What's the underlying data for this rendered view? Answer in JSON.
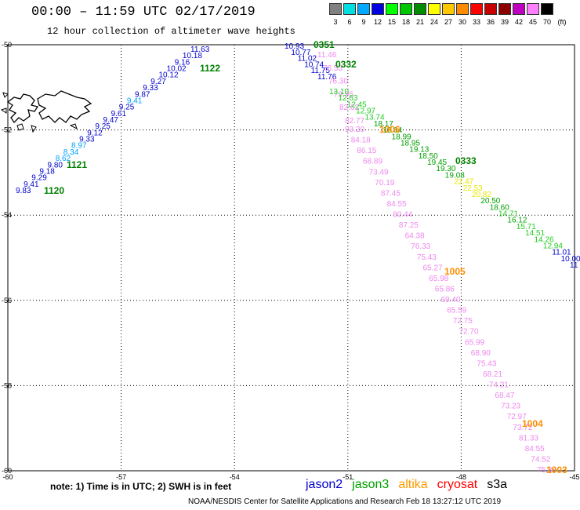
{
  "header": {
    "title": "00:00 – 11:59 UTC 02/17/2019",
    "subtitle": "12 hour collection of altimeter wave heights"
  },
  "legend": {
    "unit": "(ft)",
    "bins": [
      {
        "label": "3",
        "color": "#808080"
      },
      {
        "label": "6",
        "color": "#00e0e0"
      },
      {
        "label": "9",
        "color": "#00a8ff"
      },
      {
        "label": "12",
        "color": "#0000e0"
      },
      {
        "label": "15",
        "color": "#00ff00"
      },
      {
        "label": "18",
        "color": "#00c800"
      },
      {
        "label": "21",
        "color": "#008c00"
      },
      {
        "label": "24",
        "color": "#ffff00"
      },
      {
        "label": "27",
        "color": "#ffc800"
      },
      {
        "label": "30",
        "color": "#ff8c00"
      },
      {
        "label": "33",
        "color": "#ff0000"
      },
      {
        "label": "36",
        "color": "#c80000"
      },
      {
        "label": "39",
        "color": "#8c0000"
      },
      {
        "label": "42",
        "color": "#c000c0"
      },
      {
        "label": "45",
        "color": "#ff80ff"
      },
      {
        "label": "70",
        "color": "#000000"
      }
    ]
  },
  "axes": {
    "lon_ticks": [
      "-60",
      "-57",
      "-54",
      "-51",
      "-48",
      "-45"
    ],
    "lat_ticks": [
      "-50",
      "-52",
      "-54",
      "-56",
      "-58",
      "-60"
    ]
  },
  "colors": {
    "jason2": "#0000cc",
    "jason3": "#00a000",
    "altika": "#ff9900",
    "cryosat": "#ff0000",
    "s3a": "#000000",
    "pass_green": "#008000",
    "pass_orange": "#ff8c00",
    "cyan": "#00a0ff",
    "lgreen": "#22cc22",
    "yellow": "#e8e800",
    "pink": "#ee88ee"
  },
  "pass_labels": [
    {
      "text": "1122",
      "color": "pass_green"
    },
    {
      "text": "1121",
      "color": "pass_green"
    },
    {
      "text": "1120",
      "color": "pass_green"
    },
    {
      "text": "0332",
      "color": "pass_green"
    },
    {
      "text": "0333",
      "color": "pass_green"
    },
    {
      "text": "1006",
      "color": "pass_orange"
    },
    {
      "text": "1005",
      "color": "pass_orange"
    },
    {
      "text": "1004",
      "color": "pass_orange"
    },
    {
      "text": "1003",
      "color": "pass_orange"
    },
    {
      "text": "0351",
      "color": "pass_green"
    }
  ],
  "track_jason2_west": [
    {
      "text": "11.63",
      "color": "jason2"
    },
    {
      "text": "10.18",
      "color": "jason2"
    },
    {
      "text": "9.16",
      "color": "jason2"
    },
    {
      "text": "10.02",
      "color": "jason2"
    },
    {
      "text": "10.12",
      "color": "jason2"
    },
    {
      "text": "9.27",
      "color": "jason2"
    },
    {
      "text": "9.33",
      "color": "jason2"
    },
    {
      "text": "9.87",
      "color": "jason2"
    },
    {
      "text": "9.41",
      "color": "cyan"
    },
    {
      "text": "9.25",
      "color": "jason2"
    },
    {
      "text": "9.61",
      "color": "jason2"
    },
    {
      "text": "9.47",
      "color": "jason2"
    },
    {
      "text": "9.25",
      "color": "jason2"
    },
    {
      "text": "9.12",
      "color": "jason2"
    },
    {
      "text": "9.33",
      "color": "jason2"
    },
    {
      "text": "8.97",
      "color": "cyan"
    },
    {
      "text": "8.34",
      "color": "cyan"
    },
    {
      "text": "8.62",
      "color": "cyan"
    },
    {
      "text": "9.80",
      "color": "jason2"
    },
    {
      "text": "9.18",
      "color": "jason2"
    },
    {
      "text": "9.29",
      "color": "jason2"
    },
    {
      "text": "9.41",
      "color": "jason2"
    },
    {
      "text": "9.83",
      "color": "jason2"
    }
  ],
  "track_jason2_east": [
    {
      "text": "10.93",
      "color": "jason2"
    },
    {
      "text": "10.77",
      "color": "jason2"
    },
    {
      "text": "11.02",
      "color": "jason2"
    },
    {
      "text": "10.74",
      "color": "jason2"
    },
    {
      "text": "11.75",
      "color": "jason2"
    },
    {
      "text": "11.76",
      "color": "jason2"
    }
  ],
  "track_pink_upper": [
    {
      "text": "11.46",
      "color": "pink"
    },
    {
      "text": "76.53",
      "color": "pink"
    },
    {
      "text": "76.30",
      "color": "pink"
    },
    {
      "text": "79.95",
      "color": "pink"
    },
    {
      "text": "82.62",
      "color": "pink"
    },
    {
      "text": "82.77",
      "color": "pink"
    }
  ],
  "track_altika": [
    {
      "text": "93.20",
      "color": "pink"
    },
    {
      "text": "84.18",
      "color": "pink"
    },
    {
      "text": "86.15",
      "color": "pink"
    },
    {
      "text": "68.89",
      "color": "pink"
    },
    {
      "text": "73.49",
      "color": "pink"
    },
    {
      "text": "70.19",
      "color": "pink"
    },
    {
      "text": "87.45",
      "color": "pink"
    },
    {
      "text": "84.55",
      "color": "pink"
    },
    {
      "text": "80.44",
      "color": "pink"
    },
    {
      "text": "87.25",
      "color": "pink"
    },
    {
      "text": "64.38",
      "color": "pink"
    },
    {
      "text": "76.33",
      "color": "pink"
    },
    {
      "text": "75.43",
      "color": "pink"
    },
    {
      "text": "65.27",
      "color": "pink"
    },
    {
      "text": "65.98",
      "color": "pink"
    },
    {
      "text": "65.86",
      "color": "pink"
    },
    {
      "text": "69.40",
      "color": "pink"
    },
    {
      "text": "65.59",
      "color": "pink"
    },
    {
      "text": "72.75",
      "color": "pink"
    },
    {
      "text": "72.70",
      "color": "pink"
    },
    {
      "text": "65.99",
      "color": "pink"
    },
    {
      "text": "68.90",
      "color": "pink"
    },
    {
      "text": "75.43",
      "color": "pink"
    },
    {
      "text": "68.21",
      "color": "pink"
    },
    {
      "text": "74.21",
      "color": "pink"
    },
    {
      "text": "68.47",
      "color": "pink"
    },
    {
      "text": "73.23",
      "color": "pink"
    },
    {
      "text": "72.97",
      "color": "pink"
    },
    {
      "text": "73.72",
      "color": "pink"
    },
    {
      "text": "81.33",
      "color": "pink"
    },
    {
      "text": "84.55",
      "color": "pink"
    },
    {
      "text": "74.52",
      "color": "pink"
    },
    {
      "text": "75.38",
      "color": "pink"
    }
  ],
  "track_jason3": [
    {
      "text": "13.10",
      "color": "lgreen"
    },
    {
      "text": "12.63",
      "color": "lgreen"
    },
    {
      "text": "12.45",
      "color": "lgreen"
    },
    {
      "text": "12.97",
      "color": "lgreen"
    },
    {
      "text": "13.74",
      "color": "lgreen"
    },
    {
      "text": "18.17",
      "color": "jason3"
    },
    {
      "text": "18.64",
      "color": "jason3"
    },
    {
      "text": "18.99",
      "color": "jason3"
    },
    {
      "text": "18.95",
      "color": "jason3"
    },
    {
      "text": "19.13",
      "color": "jason3"
    },
    {
      "text": "18.50",
      "color": "jason3"
    },
    {
      "text": "19.45",
      "color": "jason3"
    },
    {
      "text": "19.30",
      "color": "jason3"
    },
    {
      "text": "19.08",
      "color": "jason3"
    },
    {
      "text": "22.47",
      "color": "yellow"
    },
    {
      "text": "22.53",
      "color": "yellow"
    },
    {
      "text": "20.82",
      "color": "yellow"
    },
    {
      "text": "20.50",
      "color": "jason3"
    },
    {
      "text": "18.60",
      "color": "jason3"
    },
    {
      "text": "14.71",
      "color": "lgreen"
    },
    {
      "text": "16.12",
      "color": "jason3"
    },
    {
      "text": "15.71",
      "color": "lgreen"
    },
    {
      "text": "14.51",
      "color": "lgreen"
    },
    {
      "text": "14.26",
      "color": "lgreen"
    },
    {
      "text": "12.94",
      "color": "lgreen"
    },
    {
      "text": "11.01",
      "color": "jason2"
    },
    {
      "text": "10.00",
      "color": "jason2"
    },
    {
      "text": "11",
      "color": "jason2"
    }
  ],
  "footer": {
    "note": "note:  1) Time is in UTC;  2) SWH is in feet",
    "satellites": [
      {
        "name": "jason2",
        "color": "jason2"
      },
      {
        "name": "jason3",
        "color": "jason3"
      },
      {
        "name": "altika",
        "color": "altika"
      },
      {
        "name": "cryosat",
        "color": "cryosat"
      },
      {
        "name": "s3a",
        "color": "s3a"
      }
    ],
    "credit": "NOAA/NESDIS Center for Satellite Applications and Research    Feb 18 13:27:12 UTC 2019"
  }
}
